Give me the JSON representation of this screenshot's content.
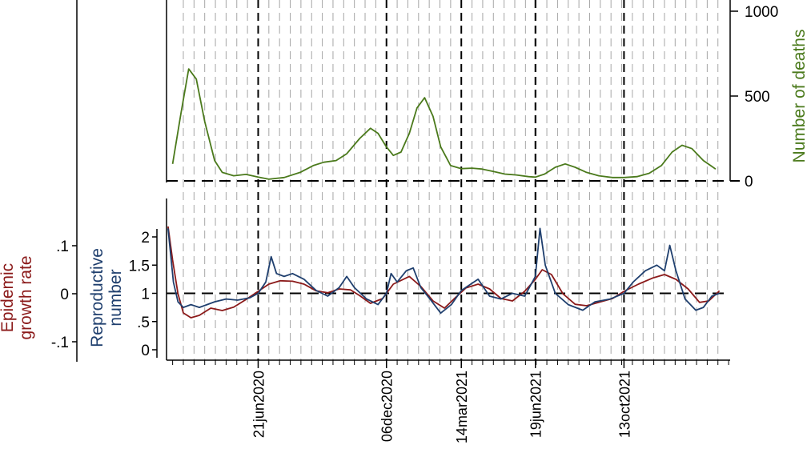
{
  "chart_data": {
    "type": "line",
    "x_axis": {
      "type": "date",
      "range": [
        "2020-02-22",
        "2022-03-01"
      ],
      "tick_labels": [
        {
          "label": "21jun2020",
          "date": "2020-06-21"
        },
        {
          "label": "06dec2020",
          "date": "2020-12-06"
        },
        {
          "label": "14mar2021",
          "date": "2021-03-14"
        },
        {
          "label": "19jun2021",
          "date": "2021-06-19"
        },
        {
          "label": "13oct2021",
          "date": "2021-10-13"
        }
      ],
      "weekly_gridlines": true,
      "grid_color": "#a6a6a6"
    },
    "top_panel": {
      "ylabel": "Number of deaths",
      "ylabel_color": "#4b7a1c",
      "ylim": [
        0,
        1000
      ],
      "yticks": [
        "0",
        "500",
        "1000"
      ],
      "ytick_values": [
        0,
        500,
        1000
      ],
      "reference_line": 0,
      "series": [
        {
          "color": "#4b7a1c",
          "points": [
            [
              "2020-03-01",
              100
            ],
            [
              "2020-03-12",
              400
            ],
            [
              "2020-03-22",
              660
            ],
            [
              "2020-04-01",
              600
            ],
            [
              "2020-04-12",
              350
            ],
            [
              "2020-04-25",
              120
            ],
            [
              "2020-05-05",
              50
            ],
            [
              "2020-05-20",
              30
            ],
            [
              "2020-06-05",
              38
            ],
            [
              "2020-06-21",
              22
            ],
            [
              "2020-07-05",
              10
            ],
            [
              "2020-07-25",
              20
            ],
            [
              "2020-08-15",
              50
            ],
            [
              "2020-09-01",
              90
            ],
            [
              "2020-09-15",
              110
            ],
            [
              "2020-10-01",
              120
            ],
            [
              "2020-10-15",
              160
            ],
            [
              "2020-11-01",
              250
            ],
            [
              "2020-11-15",
              310
            ],
            [
              "2020-11-25",
              280
            ],
            [
              "2020-12-06",
              200
            ],
            [
              "2020-12-15",
              150
            ],
            [
              "2020-12-25",
              170
            ],
            [
              "2021-01-05",
              280
            ],
            [
              "2021-01-15",
              430
            ],
            [
              "2021-01-25",
              490
            ],
            [
              "2021-02-05",
              380
            ],
            [
              "2021-02-15",
              200
            ],
            [
              "2021-02-28",
              90
            ],
            [
              "2021-03-14",
              72
            ],
            [
              "2021-03-28",
              75
            ],
            [
              "2021-04-10",
              70
            ],
            [
              "2021-04-25",
              55
            ],
            [
              "2021-05-10",
              40
            ],
            [
              "2021-05-25",
              35
            ],
            [
              "2021-06-10",
              25
            ],
            [
              "2021-06-19",
              22
            ],
            [
              "2021-07-01",
              40
            ],
            [
              "2021-07-15",
              80
            ],
            [
              "2021-07-28",
              100
            ],
            [
              "2021-08-10",
              80
            ],
            [
              "2021-08-25",
              50
            ],
            [
              "2021-09-10",
              30
            ],
            [
              "2021-09-28",
              20
            ],
            [
              "2021-10-13",
              20
            ],
            [
              "2021-10-30",
              25
            ],
            [
              "2021-11-15",
              45
            ],
            [
              "2021-12-01",
              90
            ],
            [
              "2021-12-15",
              170
            ],
            [
              "2021-12-28",
              210
            ],
            [
              "2022-01-10",
              190
            ],
            [
              "2022-01-25",
              120
            ],
            [
              "2022-02-10",
              70
            ]
          ]
        }
      ]
    },
    "bottom_panel": {
      "left_axis_outer": {
        "ylabel": "Epidemic growth rate",
        "ylabel_color": "#8b1a1a",
        "ylim": [
          -0.15,
          0.15
        ],
        "yticks": [
          ".1",
          "0",
          "-.1"
        ],
        "ytick_values": [
          0.1,
          0,
          -0.1
        ]
      },
      "left_axis_inner": {
        "ylabel": "Reproductive number",
        "ylabel_color": "#1f3f6e",
        "ylim": [
          0,
          2.0
        ],
        "yticks": [
          "2",
          "1.5",
          "1",
          ".5",
          "0"
        ],
        "ytick_values": [
          2,
          1.5,
          1,
          0.5,
          0
        ]
      },
      "reference_line": 1,
      "series": [
        {
          "axis": "left_axis_outer",
          "color": "#8b1a1a",
          "points": [
            [
              "2020-02-24",
              0.14
            ],
            [
              "2020-03-01",
              0.07
            ],
            [
              "2020-03-08",
              0
            ],
            [
              "2020-03-15",
              -0.04
            ],
            [
              "2020-03-25",
              -0.05
            ],
            [
              "2020-04-05",
              -0.045
            ],
            [
              "2020-04-20",
              -0.03
            ],
            [
              "2020-05-05",
              -0.035
            ],
            [
              "2020-05-20",
              -0.028
            ],
            [
              "2020-06-05",
              -0.012
            ],
            [
              "2020-06-21",
              0.005
            ],
            [
              "2020-07-05",
              0.02
            ],
            [
              "2020-07-20",
              0.027
            ],
            [
              "2020-08-05",
              0.026
            ],
            [
              "2020-08-20",
              0.02
            ],
            [
              "2020-09-05",
              0.006
            ],
            [
              "2020-09-20",
              0.002
            ],
            [
              "2020-10-05",
              0.01
            ],
            [
              "2020-10-20",
              0.008
            ],
            [
              "2020-11-01",
              -0.004
            ],
            [
              "2020-11-15",
              -0.02
            ],
            [
              "2020-12-01",
              -0.01
            ],
            [
              "2020-12-15",
              0.02
            ],
            [
              "2021-01-05",
              0.036
            ],
            [
              "2021-01-20",
              0.015
            ],
            [
              "2021-02-05",
              -0.015
            ],
            [
              "2021-02-20",
              -0.03
            ],
            [
              "2021-03-05",
              -0.01
            ],
            [
              "2021-03-20",
              0.012
            ],
            [
              "2021-04-05",
              0.02
            ],
            [
              "2021-04-20",
              0.01
            ],
            [
              "2021-05-05",
              -0.01
            ],
            [
              "2021-05-20",
              -0.015
            ],
            [
              "2021-06-05",
              0.005
            ],
            [
              "2021-06-19",
              0.03
            ],
            [
              "2021-06-28",
              0.05
            ],
            [
              "2021-07-10",
              0.04
            ],
            [
              "2021-07-25",
              0
            ],
            [
              "2021-08-10",
              -0.022
            ],
            [
              "2021-08-25",
              -0.025
            ],
            [
              "2021-09-10",
              -0.018
            ],
            [
              "2021-09-28",
              -0.01
            ],
            [
              "2021-10-13",
              0.005
            ],
            [
              "2021-11-01",
              0.02
            ],
            [
              "2021-11-20",
              0.033
            ],
            [
              "2021-12-05",
              0.04
            ],
            [
              "2021-12-20",
              0.03
            ],
            [
              "2022-01-05",
              0.01
            ],
            [
              "2022-01-20",
              -0.018
            ],
            [
              "2022-02-01",
              -0.015
            ],
            [
              "2022-02-15",
              0.006
            ]
          ]
        },
        {
          "axis": "left_axis_inner",
          "color": "#1f3f6e",
          "points": [
            [
              "2020-02-24",
              2.15
            ],
            [
              "2020-03-02",
              1.2
            ],
            [
              "2020-03-08",
              0.85
            ],
            [
              "2020-03-15",
              0.75
            ],
            [
              "2020-03-25",
              0.8
            ],
            [
              "2020-04-05",
              0.75
            ],
            [
              "2020-04-15",
              0.8
            ],
            [
              "2020-04-25",
              0.85
            ],
            [
              "2020-05-10",
              0.9
            ],
            [
              "2020-05-25",
              0.88
            ],
            [
              "2020-06-10",
              0.92
            ],
            [
              "2020-06-21",
              1.0
            ],
            [
              "2020-07-01",
              1.2
            ],
            [
              "2020-07-08",
              1.65
            ],
            [
              "2020-07-15",
              1.35
            ],
            [
              "2020-07-25",
              1.3
            ],
            [
              "2020-08-05",
              1.35
            ],
            [
              "2020-08-20",
              1.25
            ],
            [
              "2020-09-05",
              1.05
            ],
            [
              "2020-09-20",
              0.95
            ],
            [
              "2020-10-05",
              1.1
            ],
            [
              "2020-10-15",
              1.3
            ],
            [
              "2020-10-25",
              1.1
            ],
            [
              "2020-11-10",
              0.9
            ],
            [
              "2020-11-25",
              0.8
            ],
            [
              "2020-12-06",
              1.0
            ],
            [
              "2020-12-12",
              1.35
            ],
            [
              "2020-12-20",
              1.2
            ],
            [
              "2021-01-01",
              1.4
            ],
            [
              "2021-01-10",
              1.45
            ],
            [
              "2021-01-20",
              1.1
            ],
            [
              "2021-02-01",
              0.9
            ],
            [
              "2021-02-15",
              0.65
            ],
            [
              "2021-03-01",
              0.8
            ],
            [
              "2021-03-14",
              1.05
            ],
            [
              "2021-03-25",
              1.15
            ],
            [
              "2021-04-05",
              1.25
            ],
            [
              "2021-04-20",
              0.95
            ],
            [
              "2021-05-05",
              0.9
            ],
            [
              "2021-05-20",
              1.0
            ],
            [
              "2021-06-05",
              0.95
            ],
            [
              "2021-06-19",
              1.3
            ],
            [
              "2021-06-25",
              2.15
            ],
            [
              "2021-07-02",
              1.5
            ],
            [
              "2021-07-15",
              1.0
            ],
            [
              "2021-08-01",
              0.8
            ],
            [
              "2021-08-20",
              0.7
            ],
            [
              "2021-09-05",
              0.85
            ],
            [
              "2021-09-25",
              0.9
            ],
            [
              "2021-10-13",
              1.0
            ],
            [
              "2021-10-25",
              1.2
            ],
            [
              "2021-11-10",
              1.4
            ],
            [
              "2021-11-25",
              1.5
            ],
            [
              "2021-12-05",
              1.4
            ],
            [
              "2021-12-12",
              1.85
            ],
            [
              "2021-12-20",
              1.4
            ],
            [
              "2022-01-01",
              0.9
            ],
            [
              "2022-01-15",
              0.7
            ],
            [
              "2022-01-25",
              0.75
            ],
            [
              "2022-02-05",
              0.95
            ],
            [
              "2022-02-15",
              1.0
            ]
          ]
        }
      ]
    }
  }
}
